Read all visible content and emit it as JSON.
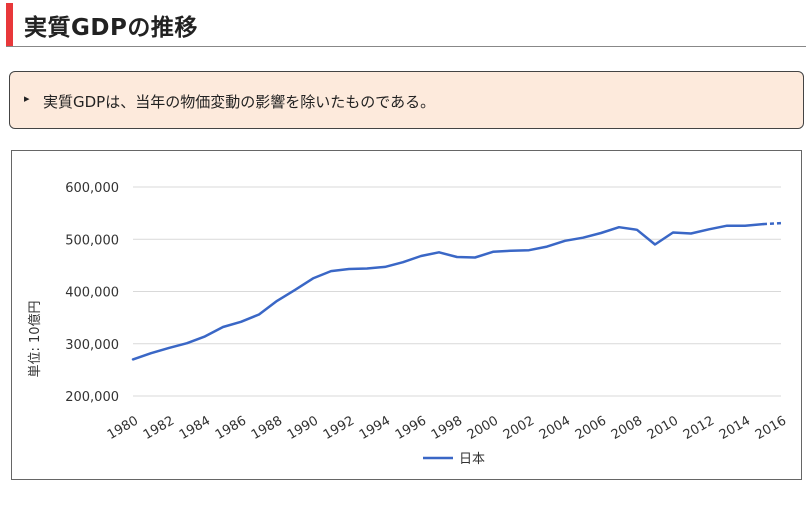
{
  "header": {
    "title": "実質GDPの推移"
  },
  "note": {
    "bullet": "▸",
    "text": "実質GDPは、当年の物価変動の影響を除いたものである。"
  },
  "colors": {
    "accent_bar": "#e8383a",
    "note_bg": "#fdeadc",
    "series": "#3a67c6",
    "grid": "#d9d9d9"
  },
  "chart_data": {
    "type": "line",
    "title": "",
    "xlabel": "",
    "ylabel": "単位: 10億円",
    "ylim": [
      200000,
      600000
    ],
    "y_ticks": [
      200000,
      300000,
      400000,
      500000,
      600000
    ],
    "y_tick_labels": [
      "200,000",
      "300,000",
      "400,000",
      "500,000",
      "600,000"
    ],
    "x_tick_labels": [
      "1980",
      "1982",
      "1984",
      "1986",
      "1988",
      "1990",
      "1992",
      "1994",
      "1996",
      "1998",
      "2000",
      "2002",
      "2004",
      "2006",
      "2008",
      "2010",
      "2012",
      "2014",
      "2016"
    ],
    "x": [
      1980,
      1981,
      1982,
      1983,
      1984,
      1985,
      1986,
      1987,
      1988,
      1989,
      1990,
      1991,
      1992,
      1993,
      1994,
      1995,
      1996,
      1997,
      1998,
      1999,
      2000,
      2001,
      2002,
      2003,
      2004,
      2005,
      2006,
      2007,
      2008,
      2009,
      2010,
      2011,
      2012,
      2013,
      2014,
      2015,
      2016
    ],
    "grid": true,
    "legend_position": "bottom",
    "series": [
      {
        "name": "日本",
        "values": [
          270000,
          282000,
          292000,
          301000,
          314000,
          332000,
          342000,
          356000,
          382000,
          403000,
          425000,
          439000,
          443000,
          444000,
          447000,
          456000,
          468000,
          475000,
          466000,
          465000,
          476000,
          478000,
          479000,
          486000,
          497000,
          503000,
          512000,
          523000,
          518000,
          490000,
          513000,
          511000,
          519000,
          526000,
          526000,
          529000,
          531000
        ],
        "projected_from": 2015
      }
    ]
  }
}
